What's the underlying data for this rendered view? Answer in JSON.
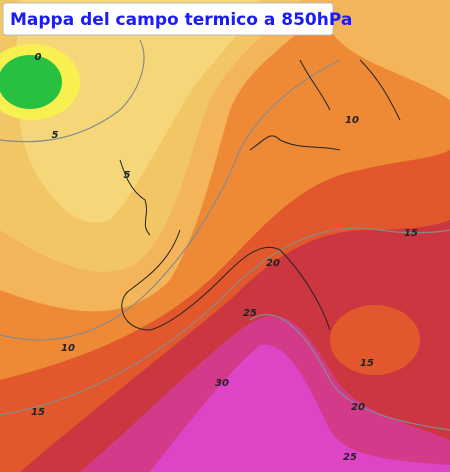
{
  "header": {
    "title": "Mappa del campo termico a 850hPa"
  },
  "contour_labels": [
    0,
    5,
    5,
    10,
    10,
    15,
    15,
    15,
    20,
    20,
    25,
    25,
    30
  ]
}
